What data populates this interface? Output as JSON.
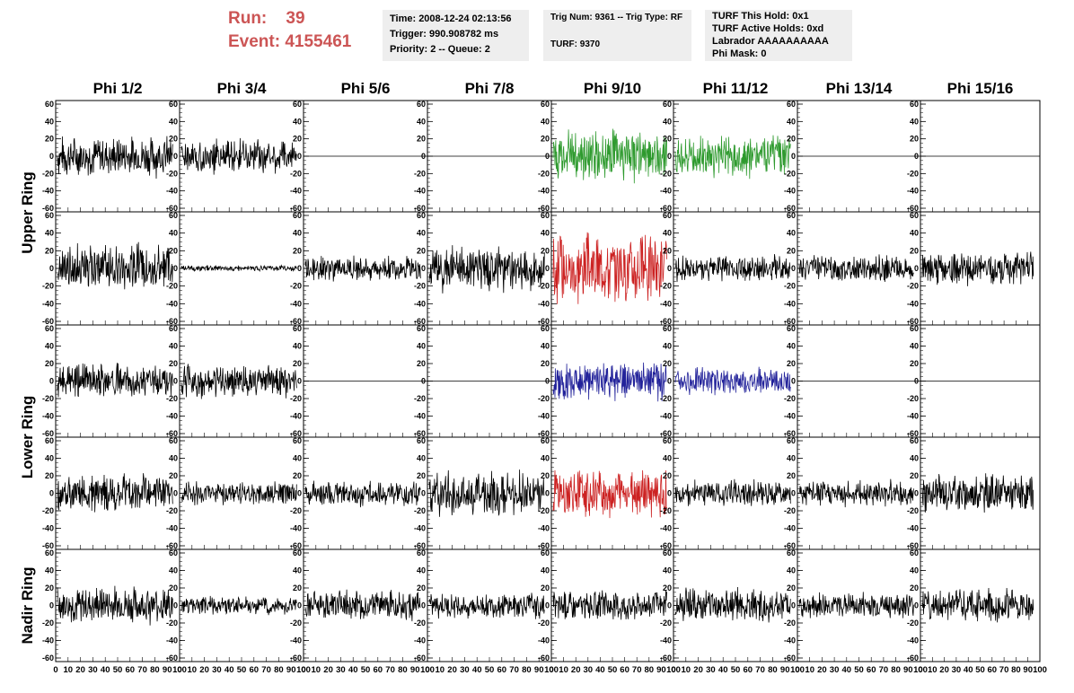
{
  "header": {
    "run_label": "Run:",
    "run_value": "39",
    "event_label": "Event:",
    "event_value": "4155461",
    "time": "Time: 2008-12-24 02:13:56",
    "trigger": "Trigger: 990.908782 ms",
    "priority": "Priority: 2 -- Queue: 2",
    "trig_num": "Trig Num: 9361 -- Trig Type: RF",
    "turf": "TURF: 9370",
    "turf_this_hold": "TURF This Hold: 0x1",
    "turf_active_holds": "TURF Active Holds: 0xd",
    "labrador": "Labrador AAAAAAAAAA",
    "phi_mask": "Phi Mask: 0"
  },
  "colors": {
    "header_text": "#cc5555",
    "trace_default": "#000000",
    "trace_green": "#2e9a2e",
    "trace_red": "#cc2222",
    "trace_blue": "#22229a",
    "info_bg": "#eeeeee"
  },
  "chart_data": {
    "type": "line",
    "columns": [
      "Phi 1/2",
      "Phi 3/4",
      "Phi 5/6",
      "Phi 7/8",
      "Phi 9/10",
      "Phi 11/12",
      "Phi 13/14",
      "Phi 15/16"
    ],
    "rows": [
      "Upper Ring",
      "Lower Ring",
      "Nadir Ring"
    ],
    "x_ticks": [
      0,
      10,
      20,
      30,
      40,
      50,
      60,
      70,
      80,
      90,
      100
    ],
    "xlim": [
      0,
      100
    ],
    "ylim": [
      -60,
      60
    ],
    "y_ticks": [
      60,
      40,
      20,
      0,
      -20,
      -40,
      -60
    ],
    "grid": false,
    "panels": [
      [
        {
          "c": "trace_default",
          "a": 22
        },
        {
          "c": "trace_default",
          "a": 18
        },
        {
          "c": "trace_default",
          "a": 0
        },
        {
          "c": "trace_default",
          "a": 0
        },
        {
          "c": "trace_green",
          "a": 28
        },
        {
          "c": "trace_green",
          "a": 24
        },
        {
          "c": "trace_default",
          "a": 0
        },
        {
          "c": "trace_default",
          "a": 0
        }
      ],
      [
        {
          "c": "trace_default",
          "a": 25
        },
        {
          "c": "trace_default",
          "a": 3
        },
        {
          "c": "trace_default",
          "a": 14
        },
        {
          "c": "trace_default",
          "a": 24
        },
        {
          "c": "trace_red",
          "a": 38
        },
        {
          "c": "trace_default",
          "a": 14
        },
        {
          "c": "trace_default",
          "a": 14
        },
        {
          "c": "trace_default",
          "a": 18
        }
      ],
      [
        {
          "c": "trace_default",
          "a": 18
        },
        {
          "c": "trace_default",
          "a": 18
        },
        {
          "c": "trace_default",
          "a": 0
        },
        {
          "c": "trace_default",
          "a": 0
        },
        {
          "c": "trace_blue",
          "a": 20
        },
        {
          "c": "trace_blue",
          "a": 14
        },
        {
          "c": "trace_default",
          "a": 0
        },
        {
          "c": "trace_default",
          "a": 0
        }
      ],
      [
        {
          "c": "trace_default",
          "a": 20
        },
        {
          "c": "trace_default",
          "a": 12
        },
        {
          "c": "trace_default",
          "a": 14
        },
        {
          "c": "trace_default",
          "a": 24
        },
        {
          "c": "trace_red",
          "a": 26
        },
        {
          "c": "trace_default",
          "a": 14
        },
        {
          "c": "trace_default",
          "a": 14
        },
        {
          "c": "trace_default",
          "a": 20
        }
      ],
      [
        {
          "c": "trace_default",
          "a": 20
        },
        {
          "c": "trace_default",
          "a": 10
        },
        {
          "c": "trace_default",
          "a": 16
        },
        {
          "c": "trace_default",
          "a": 14
        },
        {
          "c": "trace_default",
          "a": 16
        },
        {
          "c": "trace_default",
          "a": 18
        },
        {
          "c": "trace_default",
          "a": 14
        },
        {
          "c": "trace_default",
          "a": 18
        }
      ]
    ]
  }
}
